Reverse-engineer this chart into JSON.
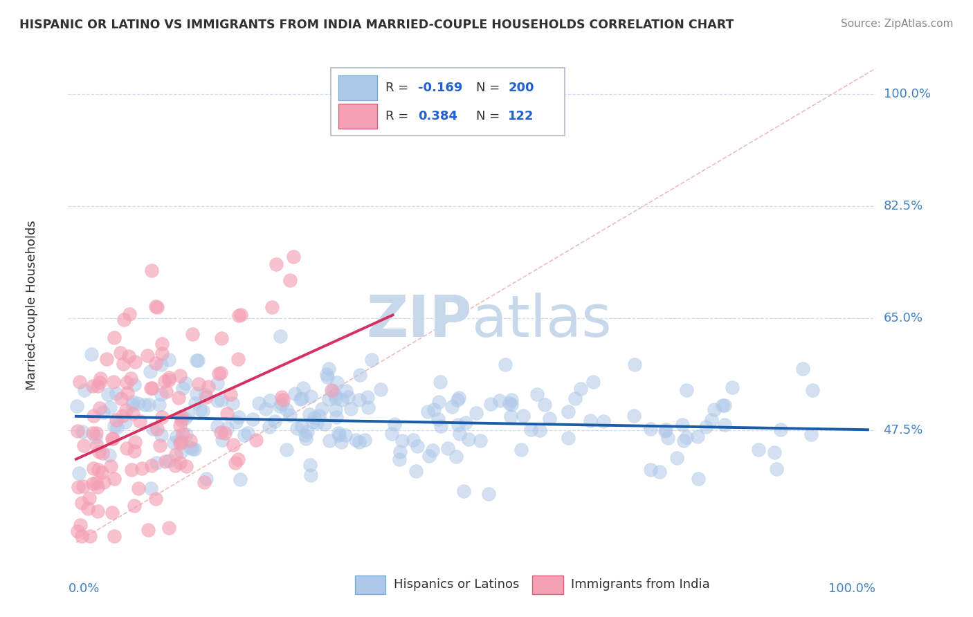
{
  "title": "HISPANIC OR LATINO VS IMMIGRANTS FROM INDIA MARRIED-COUPLE HOUSEHOLDS CORRELATION CHART",
  "source": "Source: ZipAtlas.com",
  "ylabel": "Married-couple Households",
  "ytick_vals": [
    0.475,
    0.65,
    0.825,
    1.0
  ],
  "ytick_labels": [
    "47.5%",
    "65.0%",
    "82.5%",
    "100.0%"
  ],
  "xlim": [
    -0.01,
    1.01
  ],
  "ylim": [
    0.28,
    1.06
  ],
  "blue_R": -0.169,
  "blue_N": 200,
  "pink_R": 0.384,
  "pink_N": 122,
  "blue_scatter_color": "#adc8e8",
  "pink_scatter_color": "#f4a0b5",
  "blue_line_color": "#1a5ca8",
  "pink_line_color": "#d43060",
  "diag_line_color": "#e09090",
  "watermark_color": "#c8d8eb",
  "grid_color": "#c8d8e8",
  "title_color": "#303030",
  "source_color": "#888888",
  "axis_label_color": "#4080c0",
  "legend_text_color": "#303030",
  "legend_val_color": "#2060d0",
  "background_color": "#ffffff"
}
